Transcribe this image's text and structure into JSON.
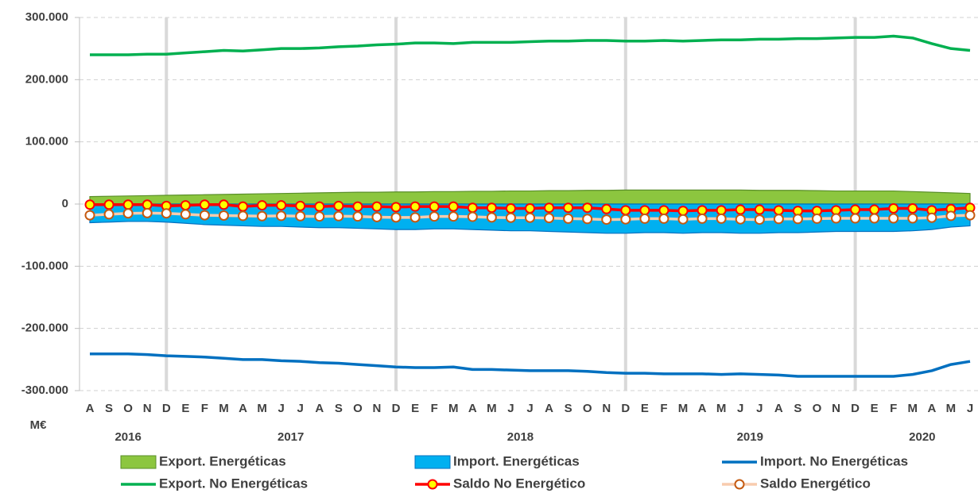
{
  "chart_data": {
    "type": "line",
    "y_unit": "M€",
    "categories": [
      "A",
      "S",
      "O",
      "N",
      "D",
      "E",
      "F",
      "M",
      "A",
      "M",
      "J",
      "J",
      "A",
      "S",
      "O",
      "N",
      "D",
      "E",
      "F",
      "M",
      "A",
      "M",
      "J",
      "J",
      "A",
      "S",
      "O",
      "N",
      "D",
      "E",
      "F",
      "M",
      "A",
      "M",
      "J",
      "J",
      "A",
      "S",
      "O",
      "N",
      "D",
      "E",
      "F",
      "M",
      "A",
      "M",
      "J"
    ],
    "years": [
      "2016",
      "2017",
      "2018",
      "2019",
      "2020"
    ],
    "ylim": [
      -300000,
      300000
    ],
    "yticks": [
      {
        "value": -300000,
        "label": "-300.000"
      },
      {
        "value": -200000,
        "label": "-200.000"
      },
      {
        "value": -100000,
        "label": "-100.000"
      },
      0,
      {
        "value": 100000,
        "label": "100.000"
      },
      {
        "value": 200000,
        "label": "200.000"
      },
      {
        "value": 300000,
        "label": "300.000"
      }
    ],
    "grid": true,
    "series": [
      {
        "name": "Export. Energéticas",
        "kind": "area",
        "color": "#8cc63f",
        "edge": "#5a8f29",
        "values": [
          12000,
          12500,
          13000,
          13500,
          14000,
          14500,
          15000,
          15500,
          16000,
          16500,
          17000,
          17500,
          18000,
          18500,
          19000,
          19000,
          19500,
          19500,
          20000,
          20000,
          20500,
          20500,
          21000,
          21000,
          21500,
          21500,
          22000,
          22000,
          22500,
          22500,
          22500,
          22500,
          22500,
          22500,
          22500,
          22000,
          22000,
          22000,
          21500,
          21000,
          21000,
          21000,
          21000,
          20000,
          19000,
          18000,
          17000
        ]
      },
      {
        "name": "Import. Energéticas",
        "kind": "area",
        "color": "#00b0f0",
        "edge": "#0070c0",
        "values": [
          -30000,
          -29000,
          -28000,
          -28000,
          -29000,
          -31000,
          -33000,
          -34000,
          -35000,
          -36000,
          -36000,
          -37000,
          -38000,
          -38000,
          -39000,
          -40000,
          -41000,
          -41000,
          -40000,
          -40000,
          -41000,
          -42000,
          -43000,
          -43000,
          -44000,
          -45000,
          -46000,
          -47000,
          -47000,
          -46000,
          -46000,
          -47000,
          -46000,
          -46000,
          -47000,
          -47000,
          -46000,
          -46000,
          -45000,
          -44000,
          -44000,
          -44000,
          -44000,
          -43000,
          -41000,
          -37000,
          -35000
        ]
      },
      {
        "name": "Import. No Energéticas",
        "kind": "line",
        "color": "#0070c0",
        "values": [
          -241000,
          -241000,
          -241000,
          -242000,
          -244000,
          -245000,
          -246000,
          -248000,
          -250000,
          -250000,
          -252000,
          -253000,
          -255000,
          -256000,
          -258000,
          -260000,
          -262000,
          -263000,
          -263000,
          -262000,
          -266000,
          -266000,
          -267000,
          -268000,
          -268000,
          -268000,
          -269000,
          -271000,
          -272000,
          -272000,
          -273000,
          -273000,
          -273000,
          -274000,
          -273000,
          -274000,
          -275000,
          -277000,
          -277000,
          -277000,
          -277000,
          -277000,
          -277000,
          -274000,
          -268000,
          -258000,
          -253000
        ]
      },
      {
        "name": "Export. No Energéticas",
        "kind": "line",
        "color": "#00b050",
        "values": [
          240000,
          240000,
          240000,
          241000,
          241000,
          243000,
          245000,
          247000,
          246000,
          248000,
          250000,
          250000,
          251000,
          253000,
          254000,
          256000,
          257000,
          259000,
          259000,
          258000,
          260000,
          260000,
          260000,
          261000,
          262000,
          262000,
          263000,
          263000,
          262000,
          262000,
          263000,
          262000,
          263000,
          264000,
          264000,
          265000,
          265000,
          266000,
          266000,
          267000,
          268000,
          268000,
          270000,
          267000,
          258000,
          250000,
          247000
        ]
      },
      {
        "name": "Saldo No Energético",
        "kind": "line",
        "color": "#ff0000",
        "marker": true,
        "marker_color": "#ffff00",
        "marker_edge": "#ff0000",
        "values": [
          -1000,
          -1000,
          -1000,
          -1000,
          -3000,
          -2000,
          -1000,
          -1000,
          -4000,
          -2000,
          -2000,
          -3000,
          -4000,
          -3000,
          -4000,
          -4000,
          -5000,
          -4000,
          -4000,
          -4000,
          -6000,
          -6000,
          -7000,
          -7000,
          -6000,
          -6000,
          -6000,
          -8000,
          -10000,
          -10000,
          -10000,
          -11000,
          -10000,
          -10000,
          -9000,
          -9000,
          -10000,
          -11000,
          -11000,
          -10000,
          -9000,
          -9000,
          -7000,
          -7000,
          -10000,
          -8000,
          -6000
        ]
      },
      {
        "name": "Saldo Energético",
        "kind": "line",
        "color": "#f8cbad",
        "marker": true,
        "marker_color": "#ffffff",
        "marker_edge": "#c55a11",
        "values": [
          -18000,
          -16500,
          -15000,
          -14500,
          -15000,
          -16500,
          -18000,
          -18500,
          -19000,
          -19500,
          -19000,
          -19500,
          -20000,
          -19500,
          -20000,
          -21000,
          -21500,
          -21500,
          -20000,
          -20000,
          -20500,
          -21500,
          -22000,
          -22000,
          -22500,
          -23500,
          -24000,
          -25000,
          -24500,
          -23500,
          -23500,
          -24500,
          -23500,
          -23500,
          -24500,
          -25000,
          -24000,
          -24000,
          -23500,
          -23000,
          -23000,
          -23000,
          -23000,
          -23000,
          -22000,
          -19000,
          -18000
        ]
      }
    ]
  }
}
